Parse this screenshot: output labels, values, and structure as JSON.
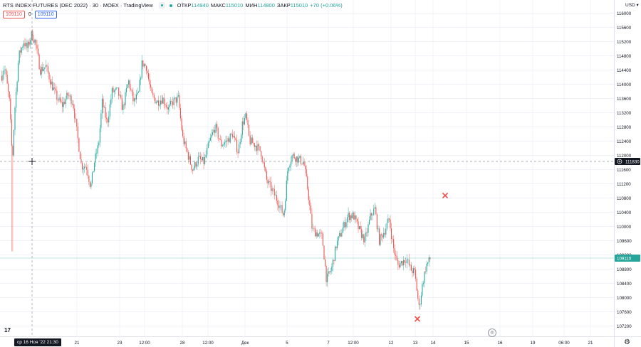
{
  "header": {
    "title": "RTS INDEX FUTURES (DEC 2022) · 30 · MOEX · TradingView",
    "ohlc": [
      {
        "label": "ОТКР",
        "value": "114940"
      },
      {
        "label": "МАКС",
        "value": "115010"
      },
      {
        "label": "МИН",
        "value": "114800"
      },
      {
        "label": "ЗАКР",
        "value": "115010"
      }
    ],
    "change": "+70 (+0.06%)",
    "sell_price": "109110",
    "spread": "0",
    "buy_price": "109110"
  },
  "axis": {
    "currency": "USD"
  },
  "crosshair": {
    "price_label": "111830",
    "date_label": "ср 16 Ноя '22   21:30"
  },
  "last_price_label": "109110",
  "colors": {
    "up": "#26a69a",
    "down": "#ef5350",
    "marker": "#ef5350",
    "crosshair_badge": "#131722"
  },
  "icons": {
    "eye": "eye-icon",
    "settings": "gear-icon",
    "scroll": "scroll-to-realtime-icon",
    "logo": "tradingview-logo-icon"
  },
  "chart_data": {
    "type": "candlestick",
    "title": "RTS INDEX FUTURES (DEC 2022) · 30 · MOEX · TradingView",
    "ylim": [
      107000,
      116300
    ],
    "y_ticks": [
      107200,
      107600,
      108000,
      108400,
      108800,
      109200,
      109600,
      110000,
      110400,
      110800,
      111200,
      111600,
      112000,
      112400,
      112800,
      113200,
      113600,
      114000,
      114400,
      114800,
      115200,
      115600,
      116000
    ],
    "x_ticks": [
      "21",
      "23",
      "12:00",
      "28",
      "12:00",
      "Дек",
      "5",
      "7",
      "12:00",
      "12",
      "13",
      "14",
      "15",
      "16",
      "19",
      "06:00",
      "21"
    ],
    "grid": true,
    "path": [
      {
        "x": 0,
        "y": 114100
      },
      {
        "x": 6,
        "y": 114500
      },
      {
        "x": 13,
        "y": 113500
      },
      {
        "x": 17,
        "y": 111800
      },
      {
        "x": 20,
        "y": 113200
      },
      {
        "x": 26,
        "y": 114800
      },
      {
        "x": 33,
        "y": 115200
      },
      {
        "x": 38,
        "y": 115000
      },
      {
        "x": 44,
        "y": 115400
      },
      {
        "x": 49,
        "y": 115200
      },
      {
        "x": 56,
        "y": 114400
      },
      {
        "x": 64,
        "y": 114500
      },
      {
        "x": 72,
        "y": 114000
      },
      {
        "x": 80,
        "y": 113600
      },
      {
        "x": 87,
        "y": 113400
      },
      {
        "x": 95,
        "y": 113700
      },
      {
        "x": 102,
        "y": 113500
      },
      {
        "x": 108,
        "y": 112600
      },
      {
        "x": 114,
        "y": 111700
      },
      {
        "x": 121,
        "y": 111700
      },
      {
        "x": 127,
        "y": 111100
      },
      {
        "x": 132,
        "y": 111800
      },
      {
        "x": 138,
        "y": 112300
      },
      {
        "x": 143,
        "y": 113500
      },
      {
        "x": 150,
        "y": 112900
      },
      {
        "x": 157,
        "y": 113800
      },
      {
        "x": 165,
        "y": 113800
      },
      {
        "x": 172,
        "y": 113300
      },
      {
        "x": 180,
        "y": 114100
      },
      {
        "x": 187,
        "y": 113500
      },
      {
        "x": 194,
        "y": 113700
      },
      {
        "x": 199,
        "y": 114600
      },
      {
        "x": 205,
        "y": 114500
      },
      {
        "x": 212,
        "y": 113700
      },
      {
        "x": 220,
        "y": 113500
      },
      {
        "x": 228,
        "y": 113600
      },
      {
        "x": 236,
        "y": 113300
      },
      {
        "x": 242,
        "y": 113500
      },
      {
        "x": 250,
        "y": 113600
      },
      {
        "x": 256,
        "y": 112500
      },
      {
        "x": 262,
        "y": 112100
      },
      {
        "x": 270,
        "y": 111600
      },
      {
        "x": 278,
        "y": 111900
      },
      {
        "x": 286,
        "y": 111800
      },
      {
        "x": 294,
        "y": 112400
      },
      {
        "x": 302,
        "y": 112800
      },
      {
        "x": 310,
        "y": 112300
      },
      {
        "x": 318,
        "y": 112400
      },
      {
        "x": 326,
        "y": 112600
      },
      {
        "x": 334,
        "y": 112100
      },
      {
        "x": 340,
        "y": 112900
      },
      {
        "x": 345,
        "y": 113100
      },
      {
        "x": 350,
        "y": 112400
      },
      {
        "x": 358,
        "y": 112300
      },
      {
        "x": 366,
        "y": 112100
      },
      {
        "x": 374,
        "y": 111300
      },
      {
        "x": 382,
        "y": 111000
      },
      {
        "x": 390,
        "y": 110700
      },
      {
        "x": 398,
        "y": 110300
      },
      {
        "x": 404,
        "y": 111700
      },
      {
        "x": 410,
        "y": 112000
      },
      {
        "x": 418,
        "y": 111900
      },
      {
        "x": 426,
        "y": 111800
      },
      {
        "x": 432,
        "y": 111000
      },
      {
        "x": 438,
        "y": 109900
      },
      {
        "x": 446,
        "y": 109800
      },
      {
        "x": 452,
        "y": 109700
      },
      {
        "x": 458,
        "y": 108500
      },
      {
        "x": 465,
        "y": 108800
      },
      {
        "x": 472,
        "y": 109500
      },
      {
        "x": 480,
        "y": 109900
      },
      {
        "x": 488,
        "y": 110300
      },
      {
        "x": 496,
        "y": 110300
      },
      {
        "x": 504,
        "y": 109900
      },
      {
        "x": 512,
        "y": 109600
      },
      {
        "x": 520,
        "y": 110300
      },
      {
        "x": 526,
        "y": 110500
      },
      {
        "x": 532,
        "y": 109600
      },
      {
        "x": 540,
        "y": 109900
      },
      {
        "x": 546,
        "y": 110200
      },
      {
        "x": 552,
        "y": 109400
      },
      {
        "x": 558,
        "y": 108900
      },
      {
        "x": 564,
        "y": 109000
      },
      {
        "x": 570,
        "y": 109100
      },
      {
        "x": 576,
        "y": 108800
      },
      {
        "x": 582,
        "y": 108700
      },
      {
        "x": 588,
        "y": 107700
      },
      {
        "x": 593,
        "y": 108400
      },
      {
        "x": 598,
        "y": 108900
      },
      {
        "x": 604,
        "y": 109100
      }
    ],
    "markers": [
      {
        "type": "cross",
        "x": 625,
        "y": 110870
      },
      {
        "type": "cross",
        "x": 586,
        "y": 107400
      }
    ],
    "crosshair": {
      "x": 45,
      "y": 111830
    },
    "last_price": 109110
  }
}
